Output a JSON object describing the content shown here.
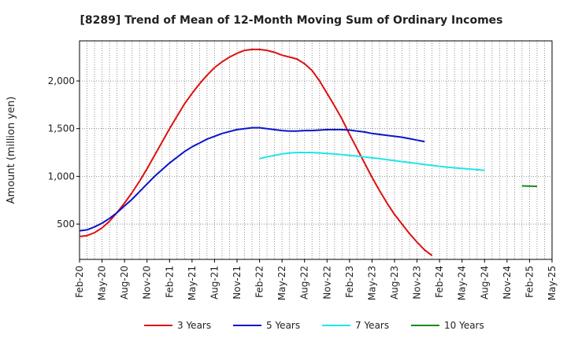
{
  "chart_data": {
    "type": "line",
    "title": "[8289]  Trend of Mean of 12-Month Moving Sum of Ordinary Incomes",
    "xlabel": "",
    "ylabel": "Amount (million yen)",
    "ylim": [
      130,
      2420
    ],
    "yticks": [
      500,
      1000,
      1500,
      2000
    ],
    "ytick_labels": [
      "500",
      "1,000",
      "1,500",
      "2,000"
    ],
    "xlim_months": [
      0,
      63
    ],
    "xtick_labels": [
      "Feb-20",
      "May-20",
      "Aug-20",
      "Nov-20",
      "Feb-21",
      "May-21",
      "Aug-21",
      "Nov-21",
      "Feb-22",
      "May-22",
      "Aug-22",
      "Nov-22",
      "Feb-23",
      "May-23",
      "Aug-23",
      "Nov-23",
      "Feb-24",
      "May-24",
      "Aug-24",
      "Nov-24",
      "Feb-25",
      "May-25"
    ],
    "grid": true,
    "legend_position": "bottom",
    "series": [
      {
        "name": "3 Years",
        "color": "#dd1111",
        "points": [
          [
            0,
            370
          ],
          [
            1,
            380
          ],
          [
            2,
            410
          ],
          [
            3,
            460
          ],
          [
            4,
            530
          ],
          [
            5,
            620
          ],
          [
            6,
            720
          ],
          [
            7,
            830
          ],
          [
            8,
            950
          ],
          [
            9,
            1080
          ],
          [
            10,
            1220
          ],
          [
            11,
            1360
          ],
          [
            12,
            1500
          ],
          [
            13,
            1630
          ],
          [
            14,
            1760
          ],
          [
            15,
            1870
          ],
          [
            16,
            1970
          ],
          [
            17,
            2060
          ],
          [
            18,
            2140
          ],
          [
            19,
            2200
          ],
          [
            20,
            2250
          ],
          [
            21,
            2290
          ],
          [
            22,
            2320
          ],
          [
            23,
            2330
          ],
          [
            24,
            2330
          ],
          [
            25,
            2320
          ],
          [
            26,
            2300
          ],
          [
            27,
            2270
          ],
          [
            28,
            2250
          ],
          [
            29,
            2230
          ],
          [
            30,
            2180
          ],
          [
            31,
            2110
          ],
          [
            32,
            2000
          ],
          [
            33,
            1870
          ],
          [
            34,
            1740
          ],
          [
            35,
            1600
          ],
          [
            36,
            1440
          ],
          [
            37,
            1290
          ],
          [
            38,
            1140
          ],
          [
            39,
            990
          ],
          [
            40,
            850
          ],
          [
            41,
            720
          ],
          [
            42,
            600
          ],
          [
            43,
            500
          ],
          [
            44,
            400
          ],
          [
            45,
            310
          ],
          [
            46,
            230
          ],
          [
            47,
            170
          ]
        ]
      },
      {
        "name": "5 Years",
        "color": "#0a14cc",
        "points": [
          [
            0,
            430
          ],
          [
            1,
            440
          ],
          [
            2,
            470
          ],
          [
            3,
            510
          ],
          [
            4,
            560
          ],
          [
            5,
            620
          ],
          [
            6,
            690
          ],
          [
            7,
            760
          ],
          [
            8,
            840
          ],
          [
            9,
            920
          ],
          [
            10,
            1000
          ],
          [
            11,
            1070
          ],
          [
            12,
            1140
          ],
          [
            13,
            1200
          ],
          [
            14,
            1260
          ],
          [
            15,
            1310
          ],
          [
            16,
            1350
          ],
          [
            17,
            1390
          ],
          [
            18,
            1420
          ],
          [
            19,
            1450
          ],
          [
            20,
            1470
          ],
          [
            21,
            1490
          ],
          [
            22,
            1500
          ],
          [
            23,
            1510
          ],
          [
            24,
            1510
          ],
          [
            25,
            1500
          ],
          [
            26,
            1490
          ],
          [
            27,
            1480
          ],
          [
            28,
            1475
          ],
          [
            29,
            1475
          ],
          [
            30,
            1480
          ],
          [
            31,
            1480
          ],
          [
            32,
            1485
          ],
          [
            33,
            1490
          ],
          [
            34,
            1490
          ],
          [
            35,
            1490
          ],
          [
            36,
            1485
          ],
          [
            37,
            1475
          ],
          [
            38,
            1465
          ],
          [
            39,
            1450
          ],
          [
            40,
            1440
          ],
          [
            41,
            1430
          ],
          [
            42,
            1420
          ],
          [
            43,
            1410
          ],
          [
            44,
            1395
          ],
          [
            45,
            1380
          ],
          [
            46,
            1365
          ]
        ]
      },
      {
        "name": "7 Years",
        "color": "#22e5e5",
        "points": [
          [
            24,
            1185
          ],
          [
            25,
            1205
          ],
          [
            26,
            1220
          ],
          [
            27,
            1235
          ],
          [
            28,
            1245
          ],
          [
            29,
            1250
          ],
          [
            30,
            1250
          ],
          [
            31,
            1250
          ],
          [
            32,
            1245
          ],
          [
            33,
            1240
          ],
          [
            34,
            1235
          ],
          [
            35,
            1228
          ],
          [
            36,
            1220
          ],
          [
            37,
            1212
          ],
          [
            38,
            1204
          ],
          [
            39,
            1195
          ],
          [
            40,
            1185
          ],
          [
            41,
            1175
          ],
          [
            42,
            1165
          ],
          [
            43,
            1155
          ],
          [
            44,
            1145
          ],
          [
            45,
            1135
          ],
          [
            46,
            1125
          ],
          [
            47,
            1115
          ],
          [
            48,
            1105
          ],
          [
            49,
            1097
          ],
          [
            50,
            1090
          ],
          [
            51,
            1083
          ],
          [
            52,
            1077
          ],
          [
            53,
            1070
          ],
          [
            54,
            1063
          ]
        ]
      },
      {
        "name": "10 Years",
        "color": "#1a8a1a",
        "points": [
          [
            59,
            900
          ],
          [
            61,
            895
          ]
        ]
      }
    ]
  }
}
